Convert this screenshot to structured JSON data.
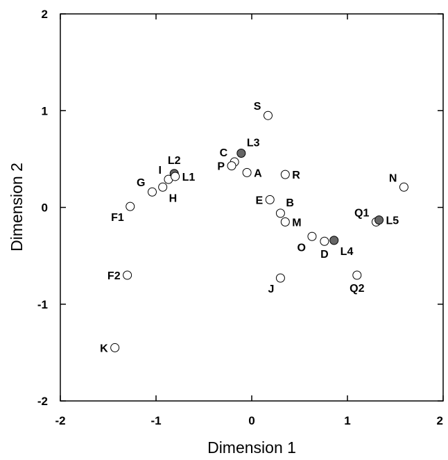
{
  "chart_data": {
    "type": "scatter",
    "title": "",
    "xlabel": "Dimension 1",
    "ylabel": "Dimension 2",
    "xlim": [
      -2,
      2
    ],
    "ylim": [
      -2,
      2
    ],
    "xticks": [
      -2,
      -1,
      0,
      1,
      2
    ],
    "yticks": [
      -2,
      -1,
      0,
      1,
      2
    ],
    "grid": false,
    "colors": {
      "open_fill": "#ffffff",
      "filled_fill": "#666666",
      "stroke": "#000000"
    },
    "points": [
      {
        "label": "S",
        "x": 0.17,
        "y": 0.95,
        "filled": false,
        "pos": "ul"
      },
      {
        "label": "C",
        "x": -0.18,
        "y": 0.47,
        "filled": false,
        "pos": "ul"
      },
      {
        "label": "L3",
        "x": -0.11,
        "y": 0.56,
        "filled": true,
        "pos": "ur"
      },
      {
        "label": "P",
        "x": -0.21,
        "y": 0.43,
        "filled": false,
        "pos": "l"
      },
      {
        "label": "A",
        "x": -0.05,
        "y": 0.36,
        "filled": false,
        "pos": "r"
      },
      {
        "label": "R",
        "x": 0.35,
        "y": 0.34,
        "filled": false,
        "pos": "r"
      },
      {
        "label": "L2",
        "x": -0.81,
        "y": 0.35,
        "filled": true,
        "pos": "u"
      },
      {
        "label": "I",
        "x": -0.87,
        "y": 0.29,
        "filled": false,
        "pos": "ul"
      },
      {
        "label": "L1",
        "x": -0.8,
        "y": 0.32,
        "filled": false,
        "pos": "r"
      },
      {
        "label": "G",
        "x": -1.04,
        "y": 0.16,
        "filled": false,
        "pos": "ul"
      },
      {
        "label": "H",
        "x": -0.93,
        "y": 0.21,
        "filled": false,
        "pos": "dr"
      },
      {
        "label": "F1",
        "x": -1.27,
        "y": 0.01,
        "filled": false,
        "pos": "dl"
      },
      {
        "label": "E",
        "x": 0.19,
        "y": 0.08,
        "filled": false,
        "pos": "l"
      },
      {
        "label": "B",
        "x": 0.3,
        "y": -0.06,
        "filled": false,
        "pos": "ur"
      },
      {
        "label": "M",
        "x": 0.35,
        "y": -0.15,
        "filled": false,
        "pos": "r"
      },
      {
        "label": "O",
        "x": 0.63,
        "y": -0.3,
        "filled": false,
        "pos": "dl"
      },
      {
        "label": "D",
        "x": 0.76,
        "y": -0.35,
        "filled": false,
        "pos": "d"
      },
      {
        "label": "L4",
        "x": 0.86,
        "y": -0.34,
        "filled": true,
        "pos": "dr"
      },
      {
        "label": "N",
        "x": 1.59,
        "y": 0.21,
        "filled": false,
        "pos": "ul"
      },
      {
        "label": "Q1",
        "x": 1.3,
        "y": -0.15,
        "filled": false,
        "pos": "ul"
      },
      {
        "label": "L5",
        "x": 1.33,
        "y": -0.13,
        "filled": true,
        "pos": "r"
      },
      {
        "label": "F2",
        "x": -1.3,
        "y": -0.7,
        "filled": false,
        "pos": "l"
      },
      {
        "label": "J",
        "x": 0.3,
        "y": -0.73,
        "filled": false,
        "pos": "dl"
      },
      {
        "label": "Q2",
        "x": 1.1,
        "y": -0.7,
        "filled": false,
        "pos": "d"
      },
      {
        "label": "K",
        "x": -1.43,
        "y": -1.45,
        "filled": false,
        "pos": "l"
      }
    ]
  }
}
